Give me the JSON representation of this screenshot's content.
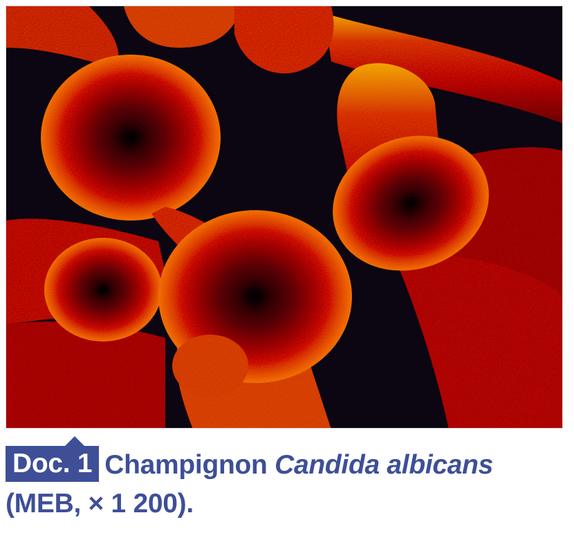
{
  "figure": {
    "description_icon": "microscope-image",
    "colors": {
      "background": "#0b0612",
      "cell_core": "#3a0f2a",
      "cell_body": "#d8360c",
      "cell_edge": "#ffb21e",
      "accent_text": "#3e4f98"
    }
  },
  "caption": {
    "badge": "Doc. 1",
    "title_prefix": "Champignon",
    "species": "Candida albicans",
    "details": "(MEB, × 1 200)."
  }
}
